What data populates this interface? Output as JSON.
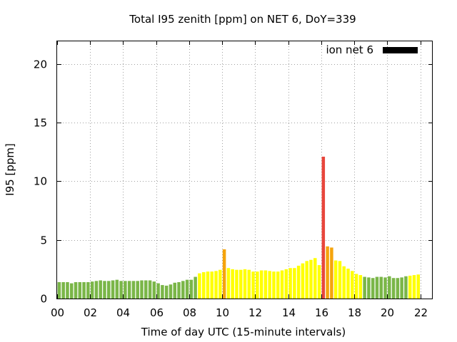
{
  "chart_data": {
    "type": "bar",
    "title": "Total I95 zenith [ppm] on NET 6, DoY=339",
    "xlabel": "Time of day UTC (15-minute intervals)",
    "ylabel": "I95 [ppm]",
    "xlim": [
      0,
      22.75
    ],
    "ylim": [
      0,
      22
    ],
    "xticks": [
      "00",
      "02",
      "04",
      "06",
      "08",
      "10",
      "12",
      "14",
      "16",
      "18",
      "20",
      "22"
    ],
    "yticks": [
      "0",
      "5",
      "10",
      "15",
      "20"
    ],
    "grid": true,
    "legend": {
      "position": "top-right",
      "label": "ion net 6",
      "color": "#000000"
    },
    "colors": {
      "green": "#7ab648",
      "yellow": "#ffff00",
      "orange": "#f5a40c",
      "red": "#e8463c"
    },
    "series": [
      {
        "values": [
          1.4,
          1.4,
          1.4,
          1.3,
          1.4,
          1.4,
          1.4,
          1.4,
          1.45,
          1.5,
          1.55,
          1.5,
          1.5,
          1.55,
          1.6,
          1.5,
          1.5,
          1.5,
          1.5,
          1.5,
          1.55,
          1.55,
          1.55,
          1.45,
          1.3,
          1.15,
          1.1,
          1.2,
          1.35,
          1.4,
          1.5,
          1.6,
          1.6,
          1.85,
          2.15,
          2.25,
          2.3,
          2.3,
          2.35,
          2.45,
          4.2,
          2.6,
          2.5,
          2.45,
          2.45,
          2.5,
          2.45,
          2.3,
          2.3,
          2.4,
          2.4,
          2.35,
          2.3,
          2.3,
          2.4,
          2.5,
          2.6,
          2.6,
          2.8,
          3.0,
          3.2,
          3.3,
          3.45,
          2.85,
          12.1,
          4.45,
          4.35,
          3.25,
          3.2,
          2.75,
          2.55,
          2.35,
          2.1,
          2.0,
          1.85,
          1.8,
          1.75,
          1.85,
          1.85,
          1.8,
          1.9,
          1.75,
          1.75,
          1.8,
          1.9,
          1.95,
          2.0,
          2.05
        ],
        "colors": [
          "green",
          "green",
          "green",
          "green",
          "green",
          "green",
          "green",
          "green",
          "green",
          "green",
          "green",
          "green",
          "green",
          "green",
          "green",
          "green",
          "green",
          "green",
          "green",
          "green",
          "green",
          "green",
          "green",
          "green",
          "green",
          "green",
          "green",
          "green",
          "green",
          "green",
          "green",
          "green",
          "green",
          "green",
          "yellow",
          "yellow",
          "yellow",
          "yellow",
          "yellow",
          "yellow",
          "orange",
          "yellow",
          "yellow",
          "yellow",
          "yellow",
          "yellow",
          "yellow",
          "yellow",
          "yellow",
          "yellow",
          "yellow",
          "yellow",
          "yellow",
          "yellow",
          "yellow",
          "yellow",
          "yellow",
          "yellow",
          "yellow",
          "yellow",
          "yellow",
          "yellow",
          "yellow",
          "yellow",
          "red",
          "orange",
          "orange",
          "yellow",
          "yellow",
          "yellow",
          "yellow",
          "yellow",
          "yellow",
          "yellow",
          "green",
          "green",
          "green",
          "green",
          "green",
          "green",
          "green",
          "green",
          "green",
          "green",
          "green",
          "yellow",
          "yellow",
          "yellow"
        ]
      }
    ]
  }
}
